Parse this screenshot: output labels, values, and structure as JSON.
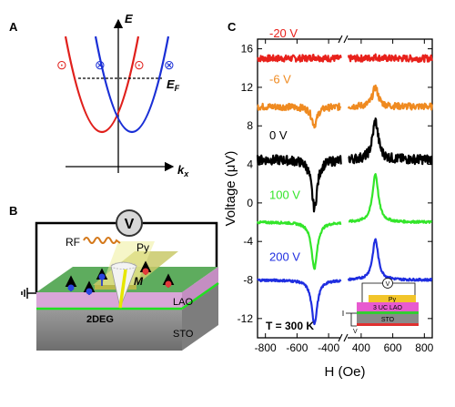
{
  "panels": {
    "a": {
      "label": "A",
      "y_axis_label": "E",
      "x_axis_label": "k",
      "x_axis_subscript": "x",
      "fermi_label": "E",
      "fermi_subscript": "F",
      "spin_symbols": [
        "⊙",
        "⊗",
        "⊙",
        "⊗"
      ],
      "colors": {
        "left_band": "#e0201c",
        "right_band": "#1a2fd6"
      }
    },
    "b": {
      "label": "B",
      "voltmeter": "V",
      "labels": {
        "rf": "RF",
        "py": "Py",
        "m": "M",
        "lao": "LAO",
        "twodeg": "2DEG",
        "sto": "STO"
      }
    },
    "c": {
      "label": "C",
      "temperature": "T = 300 K",
      "inset": {
        "py": "Py",
        "lao": "3 UC LAO",
        "sto": "STO",
        "voltmeter": "V",
        "gate": "V"
      }
    }
  },
  "chart_data": {
    "type": "line",
    "xlabel": "H (Oe)",
    "ylabel": "Voltage (μV)",
    "xlim": [
      -850,
      850
    ],
    "ylim": [
      -14,
      17
    ],
    "x_break": [
      -320,
      320
    ],
    "xticks": [
      -800,
      -600,
      -400,
      400,
      600,
      800
    ],
    "yticks": [
      -12,
      -8,
      -4,
      0,
      4,
      8,
      12,
      16
    ],
    "resonance_field_oe": 490,
    "series": [
      {
        "name": "-20 V",
        "color": "#e8211b",
        "baseline": 15,
        "amp_neg": 0.15,
        "amp_pos": 0.15,
        "noise": 0.35
      },
      {
        "name": "-6 V",
        "color": "#ef8a20",
        "baseline": 10,
        "amp_neg": -1.9,
        "amp_pos": 2.0,
        "noise": 0.35
      },
      {
        "name": "0 V",
        "color": "#000000",
        "baseline": 4.5,
        "amp_neg": -5.0,
        "amp_pos": 4.0,
        "noise": 0.5
      },
      {
        "name": "100 V",
        "color": "#33e52a",
        "baseline": -2,
        "amp_neg": -4.8,
        "amp_pos": 5.0,
        "noise": 0.12
      },
      {
        "name": "200 V",
        "color": "#1f2ee0",
        "baseline": -8,
        "amp_neg": -4.5,
        "amp_pos": 4.2,
        "noise": 0.12
      }
    ]
  }
}
